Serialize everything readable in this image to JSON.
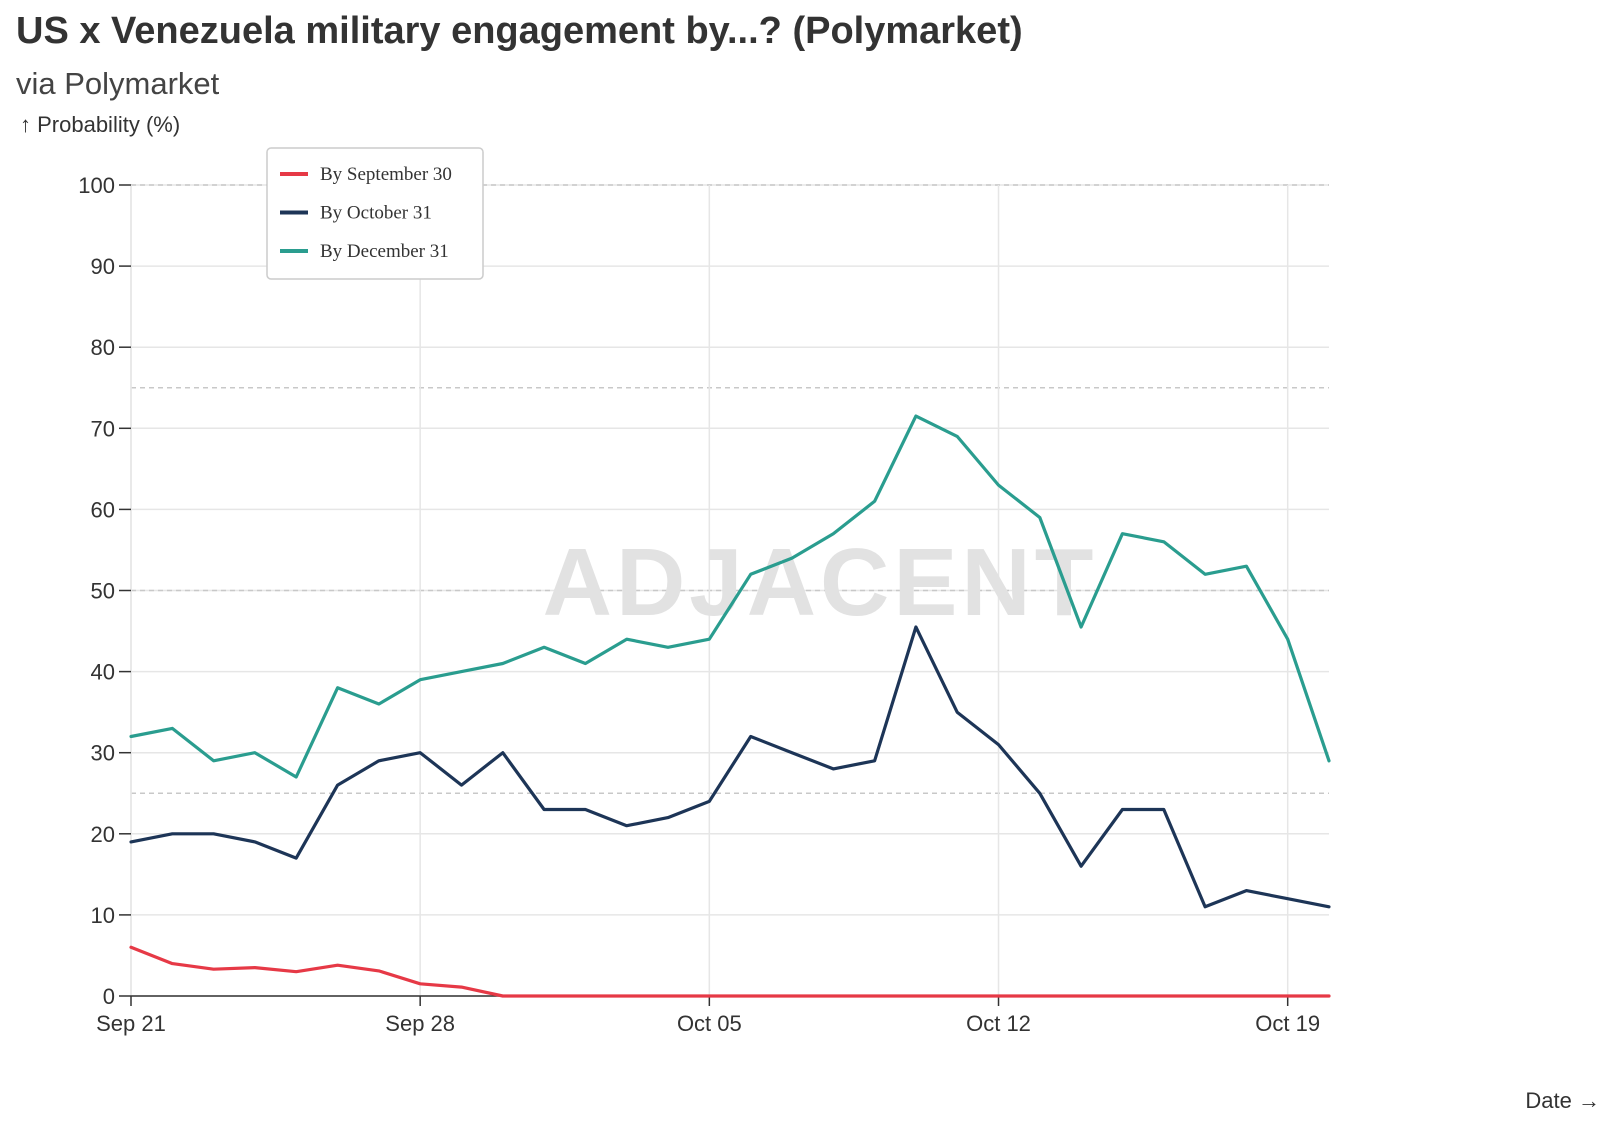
{
  "header": {
    "title": "US x Venezuela military engagement by...? (Polymarket)",
    "subtitle": "via Polymarket",
    "y_axis_label": "↑ Probability (%)",
    "x_axis_label": "Date →"
  },
  "watermark": "ADJACENT",
  "colors": {
    "september": "#e63946",
    "october": "#1d3557",
    "december": "#2a9d8f",
    "grid": "#e6e6e6",
    "dashed": "#c8c8c8",
    "axis": "#333333"
  },
  "chart_data": {
    "type": "line",
    "title": "US x Venezuela military engagement by...? (Polymarket)",
    "subtitle": "via Polymarket",
    "xlabel": "Date",
    "ylabel": "Probability (%)",
    "ylim": [
      0,
      100
    ],
    "y_ticks": [
      0,
      10,
      20,
      30,
      40,
      50,
      60,
      70,
      80,
      90,
      100
    ],
    "dashed_reference_lines": [
      25,
      50,
      75,
      100
    ],
    "x_ticks": [
      {
        "day": 0,
        "label": "Sep 21"
      },
      {
        "day": 7,
        "label": "Sep 28"
      },
      {
        "day": 14,
        "label": "Oct 05"
      },
      {
        "day": 21,
        "label": "Oct 12"
      },
      {
        "day": 28,
        "label": "Oct 19"
      }
    ],
    "x": [
      "Sep 21",
      "Sep 22",
      "Sep 23",
      "Sep 24",
      "Sep 25",
      "Sep 26",
      "Sep 27",
      "Sep 28",
      "Sep 29",
      "Sep 30",
      "Oct 01",
      "Oct 02",
      "Oct 03",
      "Oct 04",
      "Oct 05",
      "Oct 06",
      "Oct 07",
      "Oct 08",
      "Oct 09",
      "Oct 10",
      "Oct 11",
      "Oct 12",
      "Oct 13",
      "Oct 14",
      "Oct 15",
      "Oct 16",
      "Oct 17",
      "Oct 18",
      "Oct 19",
      "Oct 20"
    ],
    "xlim": [
      0,
      29
    ],
    "legend_position": "top-left",
    "grid": true,
    "series": [
      {
        "name": "By September 30",
        "color": "#e63946",
        "values": [
          6,
          4,
          3.3,
          3.5,
          3,
          3.8,
          3.1,
          1.5,
          1.1,
          0,
          0,
          0,
          0,
          0,
          0,
          0,
          0,
          0,
          0,
          0,
          0,
          0,
          0,
          0,
          0,
          0,
          0,
          0,
          0,
          0
        ]
      },
      {
        "name": "By October 31",
        "color": "#1d3557",
        "values": [
          19,
          20,
          20,
          19,
          17,
          26,
          29,
          30,
          26,
          30,
          23,
          23,
          21,
          22,
          24,
          32,
          30,
          28,
          29,
          45.5,
          35,
          31,
          25,
          16,
          23,
          23,
          11,
          13,
          12,
          11
        ]
      },
      {
        "name": "By December 31",
        "color": "#2a9d8f",
        "values": [
          32,
          33,
          29,
          30,
          27,
          38,
          36,
          39,
          40,
          41,
          43,
          41,
          44,
          43,
          44,
          52,
          54,
          57,
          61,
          71.5,
          69,
          63,
          59,
          45.5,
          57,
          56,
          52,
          53,
          44,
          29
        ]
      }
    ]
  }
}
